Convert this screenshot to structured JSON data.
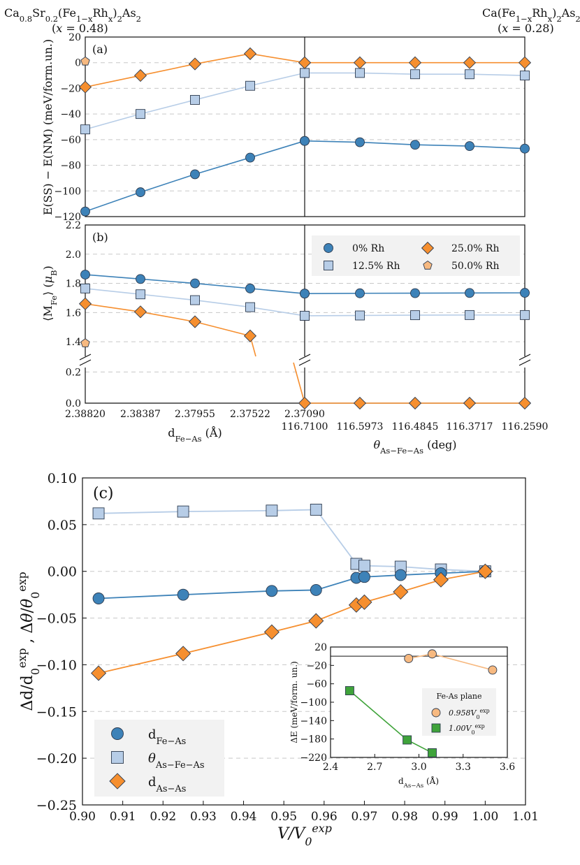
{
  "header": {
    "left_line1": "Ca0.8Sr0.2(Fe1−xRhx)2As2",
    "left_line2": "(x = 0.48)",
    "right_line1": "Ca(Fe1−xRhx)2As2",
    "right_line2": "(x = 0.28)"
  },
  "colors": {
    "blue": "#3d82b8",
    "lightblue": "#b7cde7",
    "orange": "#f68f2f",
    "peach": "#f7b980",
    "green": "#3fa33a",
    "legend_bg": "#f2f2f2"
  },
  "chart_data": [
    {
      "id": "a",
      "type": "line",
      "panel_label": "(a)",
      "ylabel": "E(SS) − E(NM) (meV/form.un.)",
      "ylim": [
        -120,
        20
      ],
      "yticks": [
        "20",
        "0",
        "−20",
        "−40",
        "−60",
        "−80",
        "−100",
        "−120"
      ],
      "ytick_values": [
        20,
        0,
        -20,
        -40,
        -60,
        -80,
        -100,
        -120
      ],
      "left_categories": [
        "2.38820",
        "2.38387",
        "2.37955",
        "2.37522",
        "2.37090"
      ],
      "right_categories": [
        "116.7100",
        "116.5973",
        "116.4845",
        "116.3717",
        "116.2590"
      ],
      "series": [
        {
          "name": "0% Rh",
          "color": "blue",
          "marker": "circle",
          "left": [
            -116,
            -101,
            -87,
            -74,
            -61
          ],
          "right": [
            -61,
            -62,
            -64,
            -65,
            -67
          ]
        },
        {
          "name": "12.5% Rh",
          "color": "lightblue",
          "marker": "square",
          "left": [
            -52,
            -40,
            -29,
            -18,
            -8
          ],
          "right": [
            -8,
            -8,
            -9,
            -9,
            -10
          ]
        },
        {
          "name": "25.0% Rh",
          "color": "orange",
          "marker": "diamond",
          "left": [
            -19,
            -10,
            -1,
            7,
            0
          ],
          "right": [
            0,
            0,
            0,
            0,
            0
          ]
        },
        {
          "name": "50.0% Rh",
          "color": "peach",
          "marker": "pentagon",
          "left": [
            1
          ],
          "right": []
        }
      ]
    },
    {
      "id": "b",
      "type": "line",
      "panel_label": "(b)",
      "ylabel": "⟨MFe⟩ (μB)",
      "ylim_top": [
        1.3,
        2.2
      ],
      "ylim_bottom": [
        0.0,
        0.3
      ],
      "yticks_top": [
        "2.2",
        "2.0",
        "1.8",
        "1.6",
        "1.4"
      ],
      "ytick_values_top": [
        2.2,
        2.0,
        1.8,
        1.6,
        1.4
      ],
      "yticks_bottom": [
        "0.2",
        "0.0"
      ],
      "ytick_values_bottom": [
        0.2,
        0.0
      ],
      "xlabel_left": "dFe−As (Å)",
      "xlabel_right": "θAs−Fe−As (deg)",
      "series": [
        {
          "name": "0% Rh",
          "color": "blue",
          "marker": "circle",
          "left": [
            1.86,
            1.83,
            1.8,
            1.765,
            1.73
          ],
          "right": [
            1.73,
            1.732,
            1.733,
            1.734,
            1.735
          ]
        },
        {
          "name": "12.5% Rh",
          "color": "lightblue",
          "marker": "square",
          "left": [
            1.765,
            1.725,
            1.685,
            1.637,
            1.578
          ],
          "right": [
            1.578,
            1.58,
            1.582,
            1.583,
            1.583
          ]
        },
        {
          "name": "25.0% Rh",
          "color": "orange",
          "marker": "diamond",
          "left": [
            1.66,
            1.605,
            1.537,
            1.44
          ],
          "right": [
            0.0,
            0.0,
            0.0,
            0.0,
            0.0
          ]
        },
        {
          "name": "50.0% Rh",
          "color": "peach",
          "marker": "pentagon",
          "left": [
            1.39
          ],
          "right": []
        }
      ],
      "legend": [
        "0% Rh",
        "12.5% Rh",
        "25.0% Rh",
        "50.0% Rh"
      ]
    },
    {
      "id": "c",
      "type": "line",
      "panel_label": "(c)",
      "ylabel": "Δd/d0exp , Δθ/θ0exp",
      "xlabel": "V/V0exp",
      "xlim": [
        0.9,
        1.01
      ],
      "ylim": [
        -0.25,
        0.1
      ],
      "xticks": [
        "0.90",
        "0.91",
        "0.92",
        "0.93",
        "0.94",
        "0.95",
        "0.96",
        "0.97",
        "0.98",
        "0.99",
        "1.00",
        "1.01"
      ],
      "xtick_values": [
        0.9,
        0.91,
        0.92,
        0.93,
        0.94,
        0.95,
        0.96,
        0.97,
        0.98,
        0.99,
        1.0,
        1.01
      ],
      "yticks": [
        "0.10",
        "0.05",
        "0.00",
        "−0.05",
        "−0.10",
        "−0.15",
        "−0.20",
        "−0.25"
      ],
      "ytick_values": [
        0.1,
        0.05,
        0.0,
        -0.05,
        -0.1,
        -0.15,
        -0.2,
        -0.25
      ],
      "series": [
        {
          "name": "dFe−As",
          "color": "blue",
          "marker": "circle",
          "x": [
            0.904,
            0.925,
            0.947,
            0.958,
            0.968,
            0.97,
            0.979,
            0.989,
            1.0
          ],
          "y": [
            -0.029,
            -0.025,
            -0.021,
            -0.02,
            -0.007,
            -0.006,
            -0.004,
            -0.002,
            0.0
          ]
        },
        {
          "name": "θAs−Fe−As",
          "color": "lightblue",
          "marker": "square",
          "x": [
            0.904,
            0.925,
            0.947,
            0.958,
            0.968,
            0.97,
            0.979,
            0.989,
            1.0
          ],
          "y": [
            0.062,
            0.064,
            0.065,
            0.066,
            0.008,
            0.006,
            0.005,
            0.002,
            0.0
          ]
        },
        {
          "name": "dAs−As",
          "color": "orange",
          "marker": "diamond",
          "x": [
            0.904,
            0.925,
            0.947,
            0.958,
            0.968,
            0.97,
            0.979,
            0.989,
            1.0
          ],
          "y": [
            -0.109,
            -0.088,
            -0.065,
            -0.053,
            -0.036,
            -0.033,
            -0.022,
            -0.009,
            0.0
          ]
        }
      ],
      "legend": [
        "dFe−As",
        "θAs−Fe−As",
        "dAs−As"
      ]
    },
    {
      "id": "c-inset",
      "type": "line",
      "xlabel": "dAs−As (Å)",
      "ylabel": "ΔE (meV/form. un.)",
      "xlim": [
        2.4,
        3.6
      ],
      "ylim": [
        -220,
        20
      ],
      "xticks": [
        "2.4",
        "2.7",
        "3.0",
        "3.3",
        "3.6"
      ],
      "xtick_values": [
        2.4,
        2.7,
        3.0,
        3.3,
        3.6
      ],
      "yticks": [
        "20",
        "−20",
        "−60",
        "−100",
        "−140",
        "−180",
        "−220"
      ],
      "ytick_values": [
        20,
        -20,
        -60,
        -100,
        -140,
        -180,
        -220
      ],
      "legend_title": "Fe-As plane",
      "series": [
        {
          "name": "0.958V0exp",
          "color": "peach",
          "marker": "circle",
          "x": [
            2.93,
            3.09,
            3.5
          ],
          "y": [
            -5,
            5,
            -30
          ]
        },
        {
          "name": "1.00V0exp",
          "color": "green",
          "marker": "square",
          "x": [
            2.53,
            2.92,
            3.09
          ],
          "y": [
            -75,
            -182,
            -210
          ]
        }
      ],
      "legend": [
        "0.958V0exp",
        "1.00V0exp"
      ]
    }
  ]
}
